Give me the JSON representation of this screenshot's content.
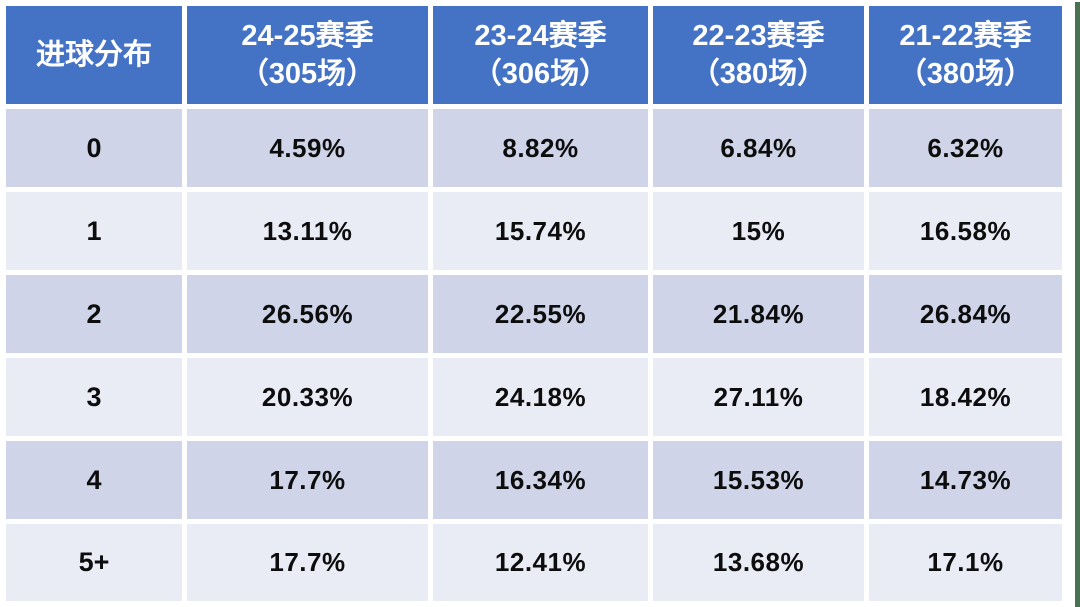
{
  "table": {
    "corner_header": "进球分布",
    "columns": [
      {
        "season": "24-25赛季",
        "games": "（305场）"
      },
      {
        "season": "23-24赛季",
        "games": "（306场）"
      },
      {
        "season": "22-23赛季",
        "games": "（380场）"
      },
      {
        "season": "21-22赛季",
        "games": "（380场）"
      }
    ],
    "rows": [
      {
        "label": "0",
        "values": [
          "4.59%",
          "8.82%",
          "6.84%",
          "6.32%"
        ]
      },
      {
        "label": "1",
        "values": [
          "13.11%",
          "15.74%",
          "15%",
          "16.58%"
        ]
      },
      {
        "label": "2",
        "values": [
          "26.56%",
          "22.55%",
          "21.84%",
          "26.84%"
        ]
      },
      {
        "label": "3",
        "values": [
          "20.33%",
          "24.18%",
          "27.11%",
          "18.42%"
        ]
      },
      {
        "label": "4",
        "values": [
          "17.7%",
          "16.34%",
          "15.53%",
          "14.73%"
        ]
      },
      {
        "label": "5+",
        "values": [
          "17.7%",
          "12.41%",
          "13.68%",
          "17.1%"
        ]
      }
    ]
  },
  "colors": {
    "header_bg": "#4472C4",
    "header_text": "#FFFFFF",
    "band_dark": "#CFD4E8",
    "band_light": "#E9ECF5",
    "grid_gap": "#FFFFFF",
    "body_text": "#0D0D0D",
    "right_edge_strip": "#4B7153"
  },
  "chart_data": {
    "type": "table",
    "title": "进球分布",
    "unit": "%",
    "row_labels": [
      "0",
      "1",
      "2",
      "3",
      "4",
      "5+"
    ],
    "categories": [
      "24-25赛季（305场）",
      "23-24赛季（306场）",
      "22-23赛季（380场）",
      "21-22赛季（380场）"
    ],
    "series": [
      {
        "name": "24-25赛季（305场）",
        "values": [
          4.59,
          13.11,
          26.56,
          20.33,
          17.7,
          17.7
        ]
      },
      {
        "name": "23-24赛季（306场）",
        "values": [
          8.82,
          15.74,
          22.55,
          24.18,
          16.34,
          12.41
        ]
      },
      {
        "name": "22-23赛季（380场）",
        "values": [
          6.84,
          15,
          21.84,
          27.11,
          15.53,
          13.68
        ]
      },
      {
        "name": "21-22赛季（380场）",
        "values": [
          6.32,
          16.58,
          26.84,
          18.42,
          14.73,
          17.1
        ]
      }
    ]
  }
}
